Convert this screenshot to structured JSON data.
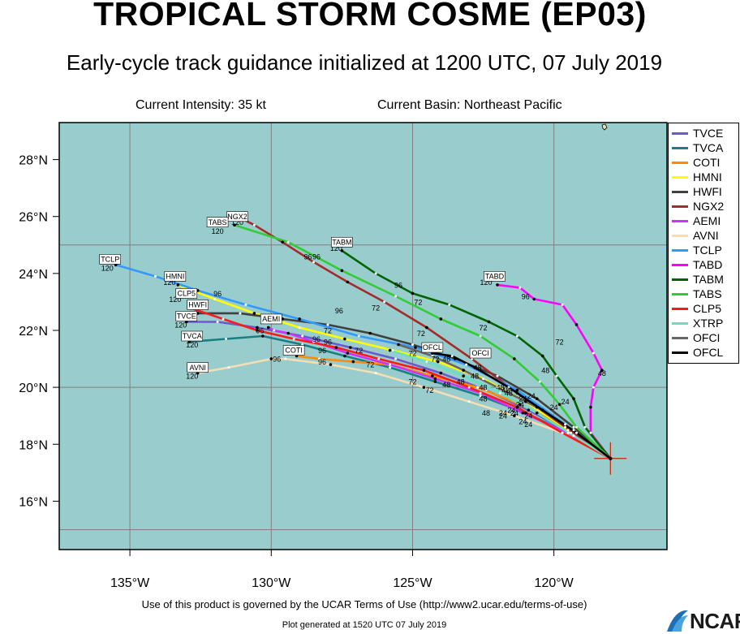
{
  "title": "TROPICAL STORM COSME (EP03)",
  "subtitle": "Early-cycle track guidance initialized at 1200 UTC, 07 July 2019",
  "current_intensity": "Current Intensity: 35 kt",
  "current_basin": "Current Basin: Northeast Pacific",
  "terms": "Use of this product is governed by the UCAR Terms of Use (http://www2.ucar.edu/terms-of-use)",
  "generated": "Plot generated at 1520 UTC   07 July 2019",
  "logo": "NCAR",
  "colors": {
    "ocean": "#99cccc",
    "grid": "#808080",
    "text": "#000000"
  },
  "chart_data": {
    "type": "line",
    "xlim": [
      -137.5,
      -116
    ],
    "ylim": [
      14.3,
      29.3
    ],
    "x_ticks": [
      -135,
      -130,
      -125,
      -120
    ],
    "x_tick_labels": [
      "135°W",
      "130°W",
      "125°W",
      "120°W"
    ],
    "y_ticks": [
      16,
      18,
      20,
      22,
      24,
      26,
      28
    ],
    "y_tick_labels": [
      "16°N",
      "18°N",
      "20°N",
      "22°N",
      "24°N",
      "26°N",
      "28°N"
    ],
    "grid": true,
    "legend_position": "right",
    "storm_position": {
      "lon": -118.0,
      "lat": 17.5
    },
    "series": [
      {
        "name": "TVCE",
        "color": "#6a5acd",
        "hours": [
          0,
          12,
          24,
          36,
          48,
          60,
          72,
          84,
          96,
          108,
          120
        ],
        "lon": [
          -118.0,
          -119.4,
          -120.9,
          -122.4,
          -124.0,
          -125.6,
          -127.2,
          -128.9,
          -130.5,
          -131.9,
          -133.0
        ],
        "lat": [
          17.5,
          18.4,
          19.2,
          19.9,
          20.5,
          21.0,
          21.4,
          21.8,
          22.1,
          22.3,
          22.3
        ]
      },
      {
        "name": "TVCA",
        "color": "#1a7f85",
        "hours": [
          0,
          12,
          24,
          36,
          48,
          60,
          72,
          84,
          96,
          108,
          120
        ],
        "lon": [
          -118.0,
          -119.5,
          -121.0,
          -122.6,
          -124.2,
          -125.8,
          -127.4,
          -128.9,
          -130.3,
          -131.6,
          -132.9
        ],
        "lat": [
          17.5,
          18.4,
          19.1,
          19.7,
          20.2,
          20.7,
          21.1,
          21.5,
          21.8,
          21.7,
          21.6
        ]
      },
      {
        "name": "COTI",
        "color": "#ff8c00",
        "hours": [
          0,
          12,
          24,
          36,
          48,
          60,
          72,
          84,
          96
        ],
        "lon": [
          -118.0,
          -119.6,
          -121.2,
          -122.7,
          -124.3,
          -125.8,
          -127.1,
          -128.3,
          -129.1
        ],
        "lat": [
          17.5,
          18.6,
          19.4,
          20.0,
          20.4,
          20.8,
          20.9,
          21.0,
          21.1
        ]
      },
      {
        "name": "HMNI",
        "color": "#ffff00",
        "hours": [
          0,
          12,
          24,
          36,
          48,
          60,
          72,
          84,
          96,
          108,
          120
        ],
        "lon": [
          -118.0,
          -119.5,
          -121.0,
          -122.5,
          -124.1,
          -125.7,
          -127.4,
          -129.0,
          -130.6,
          -132.0,
          -133.3
        ],
        "lat": [
          17.5,
          18.5,
          19.5,
          20.3,
          20.9,
          21.3,
          21.7,
          22.1,
          22.6,
          23.1,
          23.6
        ]
      },
      {
        "name": "HWFI",
        "color": "#404040",
        "hours": [
          0,
          12,
          24,
          36,
          48,
          60,
          72,
          84,
          96,
          108,
          120
        ],
        "lon": [
          -118.0,
          -119.3,
          -120.6,
          -122.0,
          -123.5,
          -125.0,
          -126.5,
          -128.0,
          -129.6,
          -131.1,
          -132.6
        ],
        "lat": [
          17.5,
          18.6,
          19.6,
          20.4,
          21.0,
          21.5,
          21.9,
          22.2,
          22.4,
          22.6,
          22.6
        ]
      },
      {
        "name": "NGX2",
        "color": "#a52a2a",
        "hours": [
          0,
          12,
          24,
          36,
          48,
          60,
          72,
          84,
          96,
          108,
          120
        ],
        "lon": [
          -118.0,
          -119.6,
          -121.3,
          -122.9,
          -124.5,
          -126.0,
          -127.3,
          -128.5,
          -129.6,
          -130.6,
          -131.2
        ],
        "lat": [
          17.5,
          18.6,
          19.8,
          21.0,
          22.1,
          23.0,
          23.7,
          24.4,
          25.1,
          25.7,
          26.0
        ]
      },
      {
        "name": "AEMI",
        "color": "#cc33ff",
        "hours": [
          0,
          12,
          24,
          36,
          48,
          60,
          72,
          84,
          96,
          108,
          120
        ],
        "lon": [
          -118.0,
          -119.5,
          -121.1,
          -122.6,
          -124.2,
          -125.8,
          -127.3,
          -128.5,
          -129.4,
          -129.9,
          -130.1
        ],
        "lat": [
          17.5,
          18.4,
          19.1,
          19.8,
          20.3,
          20.8,
          21.2,
          21.6,
          21.9,
          22.0,
          22.1
        ]
      },
      {
        "name": "AVNI",
        "color": "#f5deb3",
        "hours": [
          0,
          12,
          24,
          36,
          48,
          60,
          72,
          84,
          96,
          108,
          120
        ],
        "lon": [
          -118.0,
          -119.7,
          -121.4,
          -123.0,
          -124.6,
          -126.3,
          -127.9,
          -129.5,
          -130.0,
          -131.5,
          -132.6
        ],
        "lat": [
          17.5,
          18.4,
          19.0,
          19.5,
          20.0,
          20.5,
          20.8,
          21.0,
          21.0,
          20.7,
          20.5
        ]
      },
      {
        "name": "TCLP",
        "color": "#3399ff",
        "hours": [
          0,
          12,
          24,
          36,
          48,
          60,
          72,
          84,
          96,
          108,
          120
        ],
        "lon": [
          -118.0,
          -119.6,
          -121.3,
          -123.1,
          -124.9,
          -126.9,
          -129.0,
          -130.9,
          -132.6,
          -134.1,
          -135.5
        ],
        "lat": [
          17.5,
          18.7,
          19.9,
          20.8,
          21.4,
          21.8,
          22.4,
          22.9,
          23.4,
          23.9,
          24.3
        ]
      },
      {
        "name": "TABD",
        "color": "#ff00ff",
        "hours": [
          0,
          12,
          24,
          36,
          48,
          60,
          72,
          84,
          96,
          108,
          120
        ],
        "lon": [
          -118.0,
          -118.7,
          -118.7,
          -118.6,
          -118.3,
          -118.6,
          -119.2,
          -119.7,
          -120.7,
          -121.2,
          -122.0
        ],
        "lat": [
          17.5,
          18.4,
          19.3,
          20.0,
          20.6,
          21.2,
          22.2,
          22.9,
          23.1,
          23.5,
          23.6
        ]
      },
      {
        "name": "TABM",
        "color": "#006400",
        "hours": [
          0,
          12,
          24,
          36,
          48,
          60,
          72,
          84,
          96,
          108,
          120
        ],
        "lon": [
          -118.0,
          -118.9,
          -119.3,
          -119.9,
          -120.4,
          -121.3,
          -122.3,
          -123.7,
          -125.0,
          -126.3,
          -127.5
        ],
        "lat": [
          17.5,
          18.6,
          19.6,
          20.4,
          21.1,
          21.8,
          22.3,
          22.9,
          23.3,
          24.0,
          24.8
        ]
      },
      {
        "name": "TABS",
        "color": "#33cc33",
        "hours": [
          0,
          12,
          24,
          36,
          48,
          60,
          72,
          84,
          96,
          108,
          120
        ],
        "lon": [
          -118.0,
          -119.2,
          -119.8,
          -120.5,
          -121.4,
          -122.6,
          -124.0,
          -125.6,
          -127.5,
          -129.4,
          -131.3
        ],
        "lat": [
          17.5,
          18.6,
          19.4,
          20.2,
          21.0,
          21.8,
          22.4,
          23.2,
          24.1,
          25.1,
          25.7
        ]
      },
      {
        "name": "CLP5",
        "color": "#ff1a1a",
        "hours": [
          0,
          12,
          24,
          36,
          48,
          60,
          72,
          84,
          96,
          108,
          120
        ],
        "lon": [
          -118.0,
          -119.7,
          -121.3,
          -123.0,
          -124.6,
          -126.2,
          -127.7,
          -129.2,
          -130.5,
          -131.7,
          -132.9
        ],
        "lat": [
          17.5,
          18.4,
          19.3,
          20.0,
          20.6,
          21.0,
          21.4,
          21.7,
          22.0,
          22.4,
          22.8
        ]
      },
      {
        "name": "XTRP",
        "color": "#66e0c0",
        "hours": [
          0,
          12,
          24,
          36,
          48,
          60,
          72
        ],
        "lon": [
          -118.0,
          -119.3,
          -120.6,
          -121.9,
          -123.2,
          -124.5,
          -125.8
        ],
        "lat": [
          17.5,
          18.3,
          19.1,
          19.8,
          20.4,
          20.9,
          21.3
        ]
      },
      {
        "name": "OFCI",
        "color": "#666666",
        "hours": [
          0,
          12,
          24,
          36,
          48,
          60,
          72
        ],
        "lon": [
          -118.0,
          -119.3,
          -120.6,
          -122.0,
          -123.2,
          -124.3,
          -125.5
        ],
        "lat": [
          17.5,
          18.5,
          19.3,
          20.0,
          20.6,
          21.1,
          21.5
        ]
      },
      {
        "name": "OFCL",
        "color": "#000000",
        "hours": [
          0,
          12,
          24,
          36,
          48,
          60,
          72
        ],
        "lon": [
          -118.0,
          -119.2,
          -120.4,
          -121.6,
          -122.8,
          -123.6,
          -124.3
        ],
        "lat": [
          17.5,
          18.4,
          19.2,
          20.0,
          20.7,
          21.1,
          21.2
        ]
      }
    ],
    "endpoint_labels": [
      {
        "text": "NGX2",
        "lon": -131.2,
        "lat": 26.0
      },
      {
        "text": "TABS",
        "lon": -131.9,
        "lat": 25.8
      },
      {
        "text": "TABM",
        "lon": -127.5,
        "lat": 25.1
      },
      {
        "text": "TCLP",
        "lon": -135.7,
        "lat": 24.5
      },
      {
        "text": "HMNI",
        "lon": -133.4,
        "lat": 23.9
      },
      {
        "text": "CLP5",
        "lon": -133.0,
        "lat": 23.3
      },
      {
        "text": "HWFI",
        "lon": -132.6,
        "lat": 22.9
      },
      {
        "text": "TVCE",
        "lon": -133.0,
        "lat": 22.5
      },
      {
        "text": "AEMI",
        "lon": -130.0,
        "lat": 22.4
      },
      {
        "text": "TVCA",
        "lon": -132.8,
        "lat": 21.8
      },
      {
        "text": "COTI",
        "lon": -129.2,
        "lat": 21.3
      },
      {
        "text": "AVNI",
        "lon": -132.6,
        "lat": 20.7
      },
      {
        "text": "TABD",
        "lon": -122.1,
        "lat": 23.9
      },
      {
        "text": "OFCL",
        "lon": -124.3,
        "lat": 21.4
      },
      {
        "text": "OFCI",
        "lon": -122.6,
        "lat": 21.2
      }
    ],
    "hour_labels": [
      {
        "text": "120",
        "lon": -131.9,
        "lat": 25.4
      },
      {
        "text": "120",
        "lon": -131.2,
        "lat": 25.7
      },
      {
        "text": "120",
        "lon": -127.7,
        "lat": 24.8
      },
      {
        "text": "96",
        "lon": -128.7,
        "lat": 24.5
      },
      {
        "text": "96",
        "lon": -128.4,
        "lat": 24.5
      },
      {
        "text": "120",
        "lon": -135.8,
        "lat": 24.1
      },
      {
        "text": "120",
        "lon": -133.6,
        "lat": 23.6
      },
      {
        "text": "120",
        "lon": -133.4,
        "lat": 23.0
      },
      {
        "text": "120",
        "lon": -133.2,
        "lat": 22.1
      },
      {
        "text": "120",
        "lon": -132.8,
        "lat": 21.4
      },
      {
        "text": "120",
        "lon": -132.8,
        "lat": 20.3
      },
      {
        "text": "120",
        "lon": -132.9,
        "lat": 22.4
      },
      {
        "text": "120",
        "lon": -122.4,
        "lat": 23.6
      },
      {
        "text": "96",
        "lon": -125.5,
        "lat": 23.5
      },
      {
        "text": "96",
        "lon": -121.0,
        "lat": 23.1
      },
      {
        "text": "96",
        "lon": -131.9,
        "lat": 23.2
      },
      {
        "text": "96",
        "lon": -127.6,
        "lat": 22.6
      },
      {
        "text": "96",
        "lon": -130.4,
        "lat": 21.9
      },
      {
        "text": "96",
        "lon": -128.4,
        "lat": 21.6
      },
      {
        "text": "96",
        "lon": -128.0,
        "lat": 21.5
      },
      {
        "text": "96",
        "lon": -128.2,
        "lat": 21.2
      },
      {
        "text": "96",
        "lon": -129.8,
        "lat": 20.9
      },
      {
        "text": "96",
        "lon": -128.2,
        "lat": 20.8
      },
      {
        "text": "72",
        "lon": -128.0,
        "lat": 21.9
      },
      {
        "text": "72",
        "lon": -126.3,
        "lat": 22.7
      },
      {
        "text": "72",
        "lon": -124.8,
        "lat": 22.9
      },
      {
        "text": "72",
        "lon": -122.5,
        "lat": 22.0
      },
      {
        "text": "72",
        "lon": -124.7,
        "lat": 21.8
      },
      {
        "text": "72",
        "lon": -126.9,
        "lat": 21.2
      },
      {
        "text": "72",
        "lon": -125.0,
        "lat": 21.1
      },
      {
        "text": "72",
        "lon": -126.5,
        "lat": 20.7
      },
      {
        "text": "72",
        "lon": -124.2,
        "lat": 20.9
      },
      {
        "text": "72",
        "lon": -125.0,
        "lat": 20.1
      },
      {
        "text": "72",
        "lon": -124.4,
        "lat": 19.8
      },
      {
        "text": "72",
        "lon": -119.8,
        "lat": 21.5
      },
      {
        "text": "48",
        "lon": -120.3,
        "lat": 20.5
      },
      {
        "text": "48",
        "lon": -118.3,
        "lat": 20.4
      },
      {
        "text": "48",
        "lon": -122.7,
        "lat": 20.6
      },
      {
        "text": "48",
        "lon": -122.8,
        "lat": 20.3
      },
      {
        "text": "48",
        "lon": -123.3,
        "lat": 20.1
      },
      {
        "text": "48",
        "lon": -123.8,
        "lat": 20.0
      },
      {
        "text": "48",
        "lon": -122.5,
        "lat": 19.9
      },
      {
        "text": "48",
        "lon": -121.9,
        "lat": 19.9
      },
      {
        "text": "48",
        "lon": -121.6,
        "lat": 19.7
      },
      {
        "text": "48",
        "lon": -121.7,
        "lat": 19.8
      },
      {
        "text": "48",
        "lon": -122.5,
        "lat": 19.5
      },
      {
        "text": "48",
        "lon": -122.4,
        "lat": 19.0
      },
      {
        "text": "48",
        "lon": -123.8,
        "lat": 20.9
      },
      {
        "text": "24",
        "lon": -120.8,
        "lat": 19.6
      },
      {
        "text": "24",
        "lon": -121.1,
        "lat": 19.5
      },
      {
        "text": "24",
        "lon": -121.2,
        "lat": 19.3
      },
      {
        "text": "24",
        "lon": -121.5,
        "lat": 19.1
      },
      {
        "text": "24",
        "lon": -121.8,
        "lat": 19.0
      },
      {
        "text": "24",
        "lon": -121.8,
        "lat": 18.9
      },
      {
        "text": "24",
        "lon": -121.4,
        "lat": 19.0
      },
      {
        "text": "24",
        "lon": -120.9,
        "lat": 18.9
      },
      {
        "text": "24",
        "lon": -121.1,
        "lat": 18.7
      },
      {
        "text": "24",
        "lon": -120.9,
        "lat": 18.6
      },
      {
        "text": "24",
        "lon": -120.0,
        "lat": 19.2
      },
      {
        "text": "24",
        "lon": -119.6,
        "lat": 19.4
      }
    ]
  }
}
